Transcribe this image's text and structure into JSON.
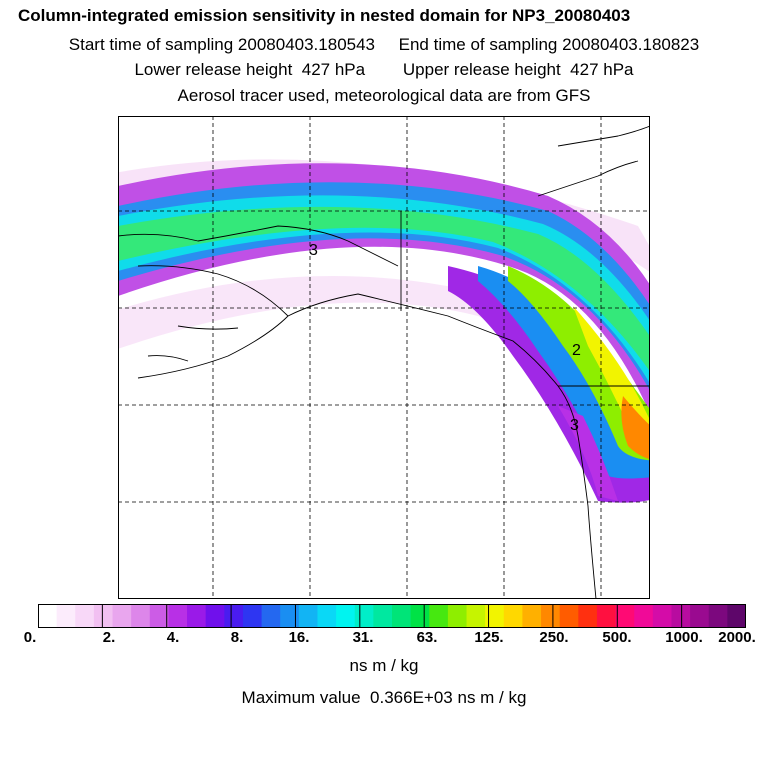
{
  "header": {
    "title": "Column-integrated emission sensitivity in nested domain for NP3_20080403",
    "start_label": "Start time of sampling",
    "start_value": "20080403.180543",
    "end_label": "End time of sampling",
    "end_value": "20080403.180823",
    "lower_label": "Lower release height",
    "lower_value": "427 hPa",
    "upper_label": "Upper release height",
    "upper_value": "427 hPa",
    "note": "Aerosol tracer used, meteorological data are from GFS"
  },
  "map": {
    "contour_labels": [
      "3",
      "2",
      "3"
    ]
  },
  "colorbar": {
    "tick_labels": [
      "0.",
      "2.",
      "4.",
      "8.",
      "16.",
      "31.",
      "63.",
      "125.",
      "250.",
      "500.",
      "1000.",
      "2000."
    ],
    "colors": [
      "#ffffff",
      "#fcecfc",
      "#f8d8f8",
      "#f2c0f2",
      "#e9a6ee",
      "#dd86ea",
      "#cc5ce6",
      "#b830e6",
      "#9a1ae8",
      "#7010ec",
      "#4a1cf0",
      "#2e36f2",
      "#2468f0",
      "#1a8ef2",
      "#12b4f4",
      "#0ad8f6",
      "#00f4f0",
      "#00eec8",
      "#00e8a0",
      "#00e478",
      "#00e246",
      "#46e810",
      "#8eee00",
      "#c6f400",
      "#f2f400",
      "#ffd800",
      "#ffb000",
      "#ff8800",
      "#ff5c00",
      "#ff3010",
      "#ff1040",
      "#ff0a74",
      "#f00a98",
      "#d40ca8",
      "#b80ca0",
      "#9a0a90",
      "#7c087e",
      "#5e066a"
    ]
  },
  "units": "ns m / kg",
  "max_label": "Maximum value",
  "max_value": "0.366E+03",
  "max_units": "ns m / kg"
}
